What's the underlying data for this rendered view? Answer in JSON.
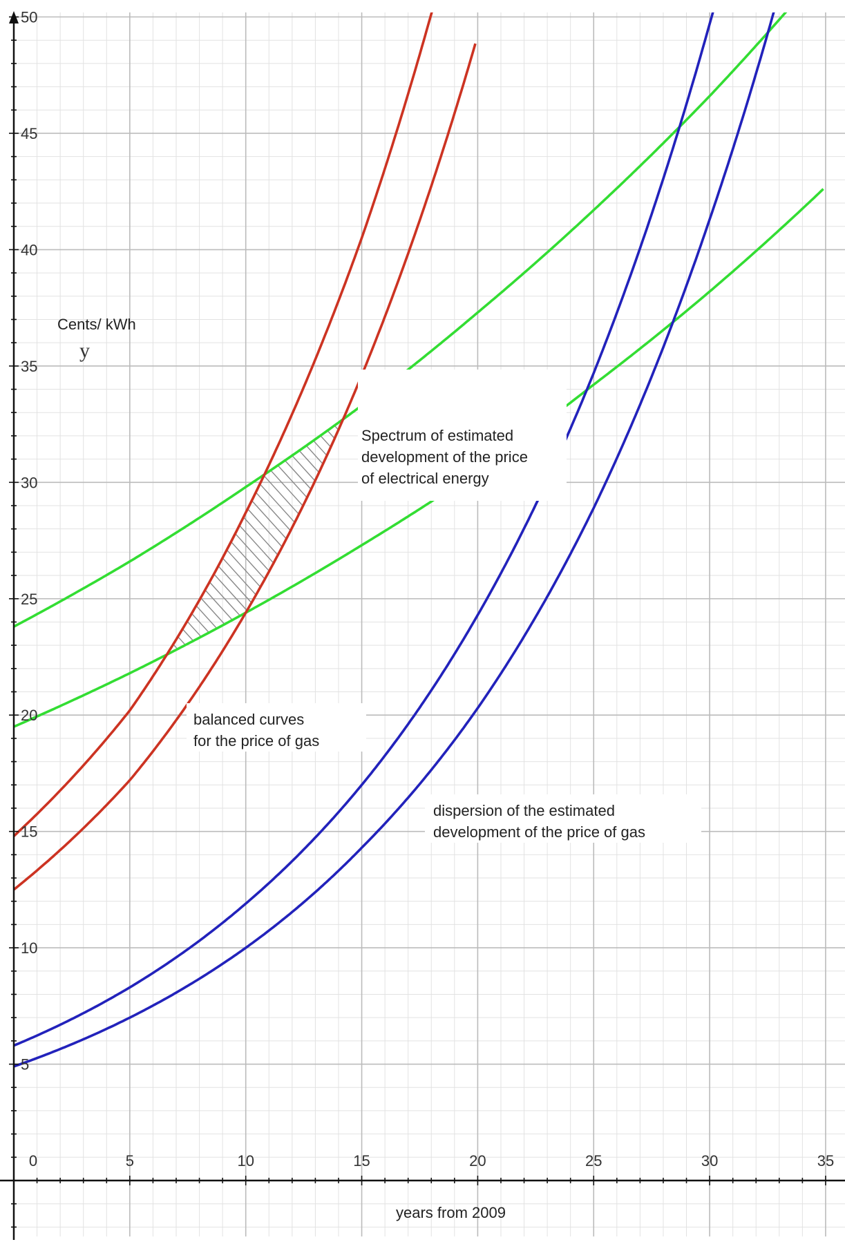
{
  "chart_data": {
    "type": "line",
    "xlabel": "years from 2009",
    "ylabel": "Cents/ kWh",
    "yvar": "y",
    "xlim": [
      0,
      35
    ],
    "ylim": [
      0,
      50
    ],
    "x_ticks": [
      0,
      5,
      10,
      15,
      20,
      25,
      30,
      35
    ],
    "y_ticks": [
      5,
      10,
      15,
      20,
      25,
      30,
      35,
      40,
      45,
      50
    ],
    "grid": true,
    "colors": {
      "electric": "#33dd33",
      "balanced": "#cc3322",
      "gas": "#2222bb",
      "grid_major": "#bbbbbb",
      "grid_minor": "#e2e2e2",
      "hatch": "#888888"
    },
    "series": [
      {
        "group": "electric",
        "x": [
          0,
          5,
          10,
          15,
          20,
          25,
          30,
          35
        ],
        "values": [
          23.8,
          26.6,
          29.8,
          33.3,
          37.3,
          41.7,
          46.6,
          52.2
        ]
      },
      {
        "group": "electric",
        "x": [
          0,
          5,
          10,
          15,
          20,
          25,
          30,
          35
        ],
        "values": [
          19.5,
          21.8,
          24.4,
          27.3,
          30.5,
          34.2,
          38.2,
          42.7
        ]
      },
      {
        "group": "balanced",
        "x": [
          0,
          5,
          10,
          15,
          20
        ],
        "values": [
          14.8,
          20.2,
          28.7,
          40.5,
          57.8
        ]
      },
      {
        "group": "balanced",
        "x": [
          0,
          5,
          10,
          15,
          20
        ],
        "values": [
          12.5,
          17.2,
          24.4,
          34.6,
          49.2
        ]
      },
      {
        "group": "gas",
        "x": [
          0,
          5,
          10,
          15,
          20,
          25,
          30,
          35
        ],
        "values": [
          5.8,
          8.3,
          11.9,
          17.0,
          24.3,
          34.7,
          49.7,
          71.0
        ]
      },
      {
        "group": "gas",
        "x": [
          0,
          5,
          10,
          15,
          20,
          25,
          30,
          35
        ],
        "values": [
          4.9,
          7.0,
          10.0,
          14.3,
          20.3,
          28.9,
          41.3,
          58.8
        ]
      }
    ],
    "shaded_region": "between the balanced curves and between the electric curves (hatched)",
    "annotations": [
      {
        "lines": [
          "Spectrum of estimated",
          "development of the price",
          "of electrical energy"
        ]
      },
      {
        "lines": [
          "balanced curves",
          "for the price of gas"
        ]
      },
      {
        "lines": [
          "dispersion of the estimated",
          "development of the price of gas"
        ]
      }
    ]
  }
}
